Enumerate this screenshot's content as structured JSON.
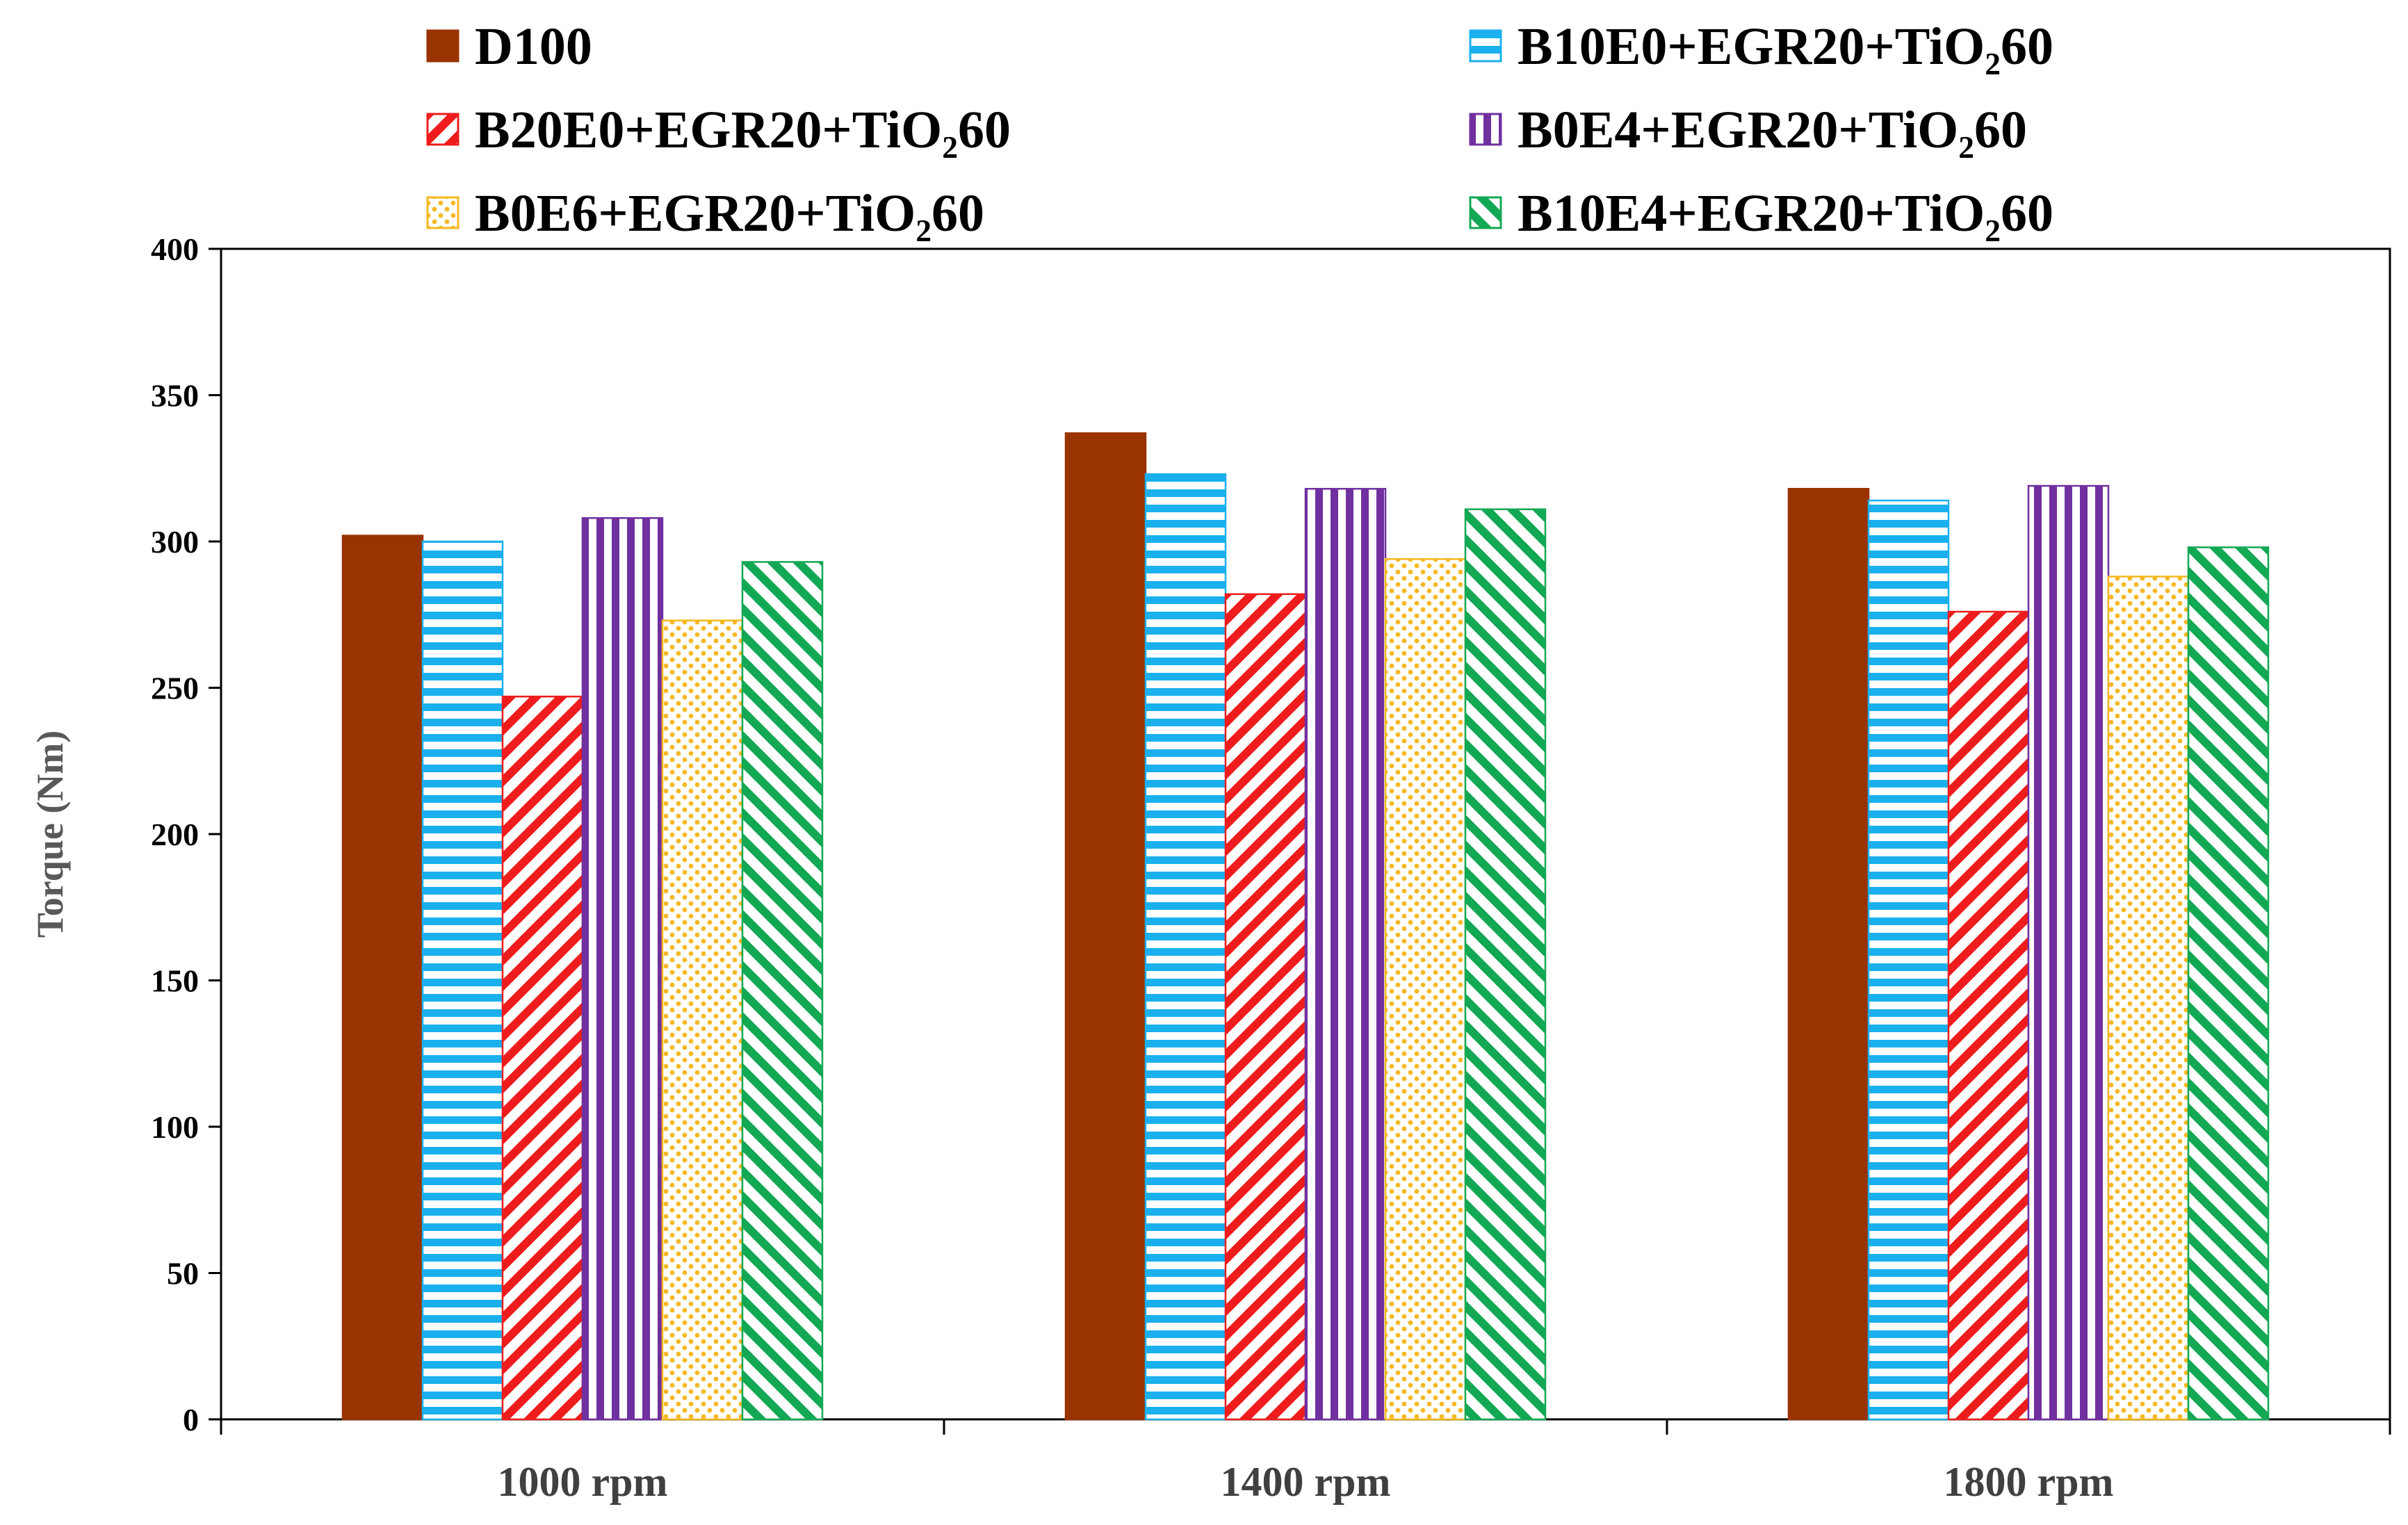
{
  "chart_data": {
    "type": "bar",
    "title": "",
    "xlabel": "",
    "ylabel": "Torque (Nm)",
    "ylim": [
      0,
      400
    ],
    "yticks": [
      0,
      50,
      100,
      150,
      200,
      250,
      300,
      350,
      400
    ],
    "grid": false,
    "legend_position": "top",
    "categories": [
      "1000 rpm",
      "1400 rpm",
      "1800 rpm"
    ],
    "series": [
      {
        "name": "D100",
        "color": "#993300",
        "pattern": "solid",
        "values": [
          302,
          337,
          318
        ]
      },
      {
        "name": "B10E0+EGR20+TiO₂60",
        "color": "#1ab0ee",
        "pattern": "horizontal",
        "values": [
          300,
          323,
          314
        ]
      },
      {
        "name": "B20E0+EGR20+TiO₂60",
        "color": "#ee1c1c",
        "pattern": "diagonal-up",
        "values": [
          247,
          282,
          276
        ]
      },
      {
        "name": "B0E4+EGR20+TiO₂60",
        "color": "#7030a0",
        "pattern": "vertical",
        "values": [
          308,
          318,
          319
        ]
      },
      {
        "name": "B0E6+EGR20+TiO₂60",
        "color": "#f5b820",
        "pattern": "dots",
        "values": [
          273,
          294,
          288
        ]
      },
      {
        "name": "B10E4+EGR20+TiO₂60",
        "color": "#12a854",
        "pattern": "diagonal-down",
        "values": [
          293,
          311,
          298
        ]
      }
    ]
  }
}
